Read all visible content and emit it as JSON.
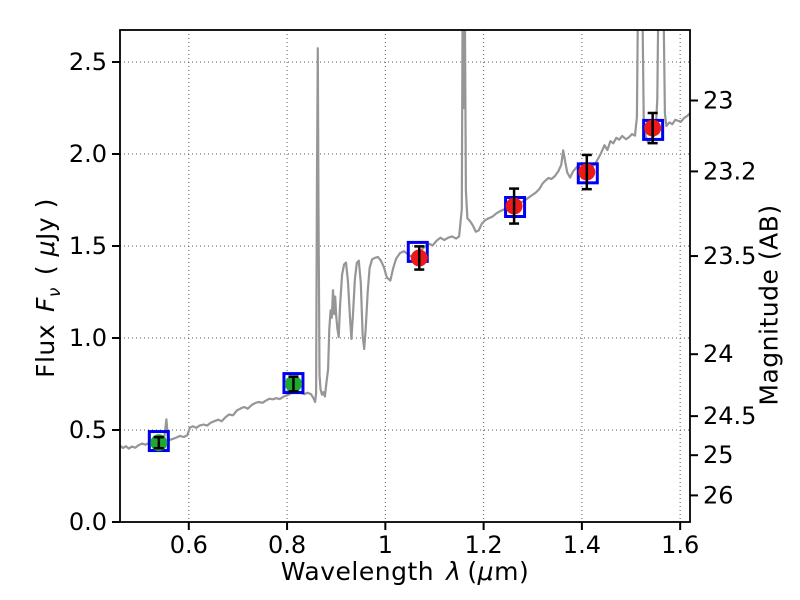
{
  "labels": {
    "x_word": "Wavelength",
    "x_lambda": "λ",
    "x_unit_pre": "(",
    "x_mu": "μ",
    "x_unit_post": "m)",
    "y_left_word": "Flux",
    "y_left_F": "F",
    "y_left_nu": "ν",
    "y_left_unit_pre": "( ",
    "y_left_mu": "μ",
    "y_left_unit_post": "Jy )",
    "y_right": "Magnitude (AB)"
  },
  "chart_data": {
    "type": "line+scatter",
    "title": "",
    "xlabel": "Wavelength λ (μm)",
    "ylabel_left": "Flux Fν ( μJy )",
    "ylabel_right": "Magnitude (AB)",
    "xlim": [
      0.46,
      1.62
    ],
    "ylim_flux": [
      0.0,
      2.674
    ],
    "x_ticks": [
      0.6,
      0.8,
      1.0,
      1.2,
      1.4,
      1.6
    ],
    "x_tick_labels": [
      "0.6",
      "0.8",
      "1",
      "1.2",
      "1.4",
      "1.6"
    ],
    "y_ticks_flux": [
      0.0,
      0.5,
      1.0,
      1.5,
      2.0,
      2.5
    ],
    "y_tick_labels_flux": [
      "0.0",
      "0.5",
      "1.0",
      "1.5",
      "2.0",
      "2.5"
    ],
    "y_ticks_mag": [
      23,
      23.2,
      23.5,
      24,
      24.5,
      25,
      26
    ],
    "y_tick_labels_mag": [
      "23",
      "23.2",
      "23.5",
      "24",
      "24.5",
      "25",
      "26"
    ],
    "ab_zero_point": 23.9,
    "grid": "dotted",
    "grid_color": "#777777",
    "series": [
      {
        "name": "model-spectrum",
        "marker": "line",
        "color": "#969696",
        "points": [
          [
            0.46,
            0.415
          ],
          [
            0.466,
            0.402
          ],
          [
            0.472,
            0.412
          ],
          [
            0.478,
            0.399
          ],
          [
            0.484,
            0.41
          ],
          [
            0.491,
            0.404
          ],
          [
            0.498,
            0.418
          ],
          [
            0.505,
            0.426
          ],
          [
            0.512,
            0.42
          ],
          [
            0.519,
            0.43
          ],
          [
            0.527,
            0.426
          ],
          [
            0.535,
            0.436
          ],
          [
            0.543,
            0.434
          ],
          [
            0.549,
            0.442
          ],
          [
            0.552,
            0.5
          ],
          [
            0.5545,
            0.558
          ],
          [
            0.557,
            0.47
          ],
          [
            0.561,
            0.446
          ],
          [
            0.568,
            0.452
          ],
          [
            0.575,
            0.459
          ],
          [
            0.582,
            0.468
          ],
          [
            0.59,
            0.462
          ],
          [
            0.597,
            0.472
          ],
          [
            0.602,
            0.512
          ],
          [
            0.608,
            0.52
          ],
          [
            0.615,
            0.512
          ],
          [
            0.622,
            0.524
          ],
          [
            0.63,
            0.53
          ],
          [
            0.637,
            0.524
          ],
          [
            0.645,
            0.54
          ],
          [
            0.652,
            0.548
          ],
          [
            0.66,
            0.556
          ],
          [
            0.667,
            0.548
          ],
          [
            0.675,
            0.57
          ],
          [
            0.682,
            0.584
          ],
          [
            0.69,
            0.58
          ],
          [
            0.698,
            0.606
          ],
          [
            0.706,
            0.618
          ],
          [
            0.713,
            0.625
          ],
          [
            0.72,
            0.616
          ],
          [
            0.728,
            0.636
          ],
          [
            0.735,
            0.646
          ],
          [
            0.742,
            0.652
          ],
          [
            0.75,
            0.648
          ],
          [
            0.757,
            0.66
          ],
          [
            0.764,
            0.67
          ],
          [
            0.771,
            0.667
          ],
          [
            0.778,
            0.673
          ],
          [
            0.785,
            0.668
          ],
          [
            0.792,
            0.68
          ],
          [
            0.8,
            0.688
          ],
          [
            0.807,
            0.699
          ],
          [
            0.814,
            0.708
          ],
          [
            0.821,
            0.712
          ],
          [
            0.828,
            0.702
          ],
          [
            0.835,
            0.695
          ],
          [
            0.842,
            0.703
          ],
          [
            0.849,
            0.694
          ],
          [
            0.854,
            0.672
          ],
          [
            0.857,
            0.652
          ],
          [
            0.859,
            0.7
          ],
          [
            0.861,
            1.9
          ],
          [
            0.8625,
            2.575
          ],
          [
            0.864,
            1.7
          ],
          [
            0.866,
            0.8
          ],
          [
            0.868,
            0.722
          ],
          [
            0.871,
            0.692
          ],
          [
            0.874,
            0.706
          ],
          [
            0.877,
            0.682
          ],
          [
            0.88,
            0.756
          ],
          [
            0.8835,
            0.83
          ],
          [
            0.886,
            1.05
          ],
          [
            0.8885,
            1.15
          ],
          [
            0.891,
            1.11
          ],
          [
            0.8935,
            1.26
          ],
          [
            0.896,
            1.13
          ],
          [
            0.898,
            1.225
          ],
          [
            0.9,
            1.12
          ],
          [
            0.9025,
            1.05
          ],
          [
            0.905,
            1.005
          ],
          [
            0.908,
            1.18
          ],
          [
            0.912,
            1.345
          ],
          [
            0.916,
            1.4
          ],
          [
            0.92,
            1.41
          ],
          [
            0.924,
            1.305
          ],
          [
            0.928,
            1.11
          ],
          [
            0.931,
            0.995
          ],
          [
            0.934,
            1.12
          ],
          [
            0.938,
            1.32
          ],
          [
            0.942,
            1.408
          ],
          [
            0.946,
            1.42
          ],
          [
            0.95,
            1.3
          ],
          [
            0.954,
            1.01
          ],
          [
            0.957,
            0.94
          ],
          [
            0.96,
            1.05
          ],
          [
            0.964,
            1.25
          ],
          [
            0.968,
            1.38
          ],
          [
            0.973,
            1.428
          ],
          [
            0.979,
            1.436
          ],
          [
            0.985,
            1.44
          ],
          [
            0.991,
            1.42
          ],
          [
            0.997,
            1.385
          ],
          [
            1.003,
            1.33
          ],
          [
            1.01,
            1.312
          ],
          [
            1.016,
            1.38
          ],
          [
            1.022,
            1.432
          ],
          [
            1.03,
            1.462
          ],
          [
            1.038,
            1.472
          ],
          [
            1.046,
            1.455
          ],
          [
            1.054,
            1.44
          ],
          [
            1.06,
            1.455
          ],
          [
            1.066,
            1.468
          ],
          [
            1.074,
            1.48
          ],
          [
            1.082,
            1.5
          ],
          [
            1.09,
            1.512
          ],
          [
            1.096,
            1.502
          ],
          [
            1.104,
            1.528
          ],
          [
            1.112,
            1.545
          ],
          [
            1.12,
            1.532
          ],
          [
            1.128,
            1.545
          ],
          [
            1.136,
            1.552
          ],
          [
            1.144,
            1.54
          ],
          [
            1.15,
            1.552
          ],
          [
            1.1555,
            1.7
          ],
          [
            1.1575,
            2.95
          ],
          [
            1.1595,
            2.25
          ],
          [
            1.1615,
            2.95
          ],
          [
            1.164,
            1.8
          ],
          [
            1.167,
            1.65
          ],
          [
            1.172,
            1.636
          ],
          [
            1.178,
            1.612
          ],
          [
            1.184,
            1.578
          ],
          [
            1.19,
            1.585
          ],
          [
            1.196,
            1.62
          ],
          [
            1.203,
            1.64
          ],
          [
            1.21,
            1.65
          ],
          [
            1.218,
            1.66
          ],
          [
            1.226,
            1.678
          ],
          [
            1.234,
            1.69
          ],
          [
            1.242,
            1.7
          ],
          [
            1.25,
            1.698
          ],
          [
            1.258,
            1.708
          ],
          [
            1.266,
            1.72
          ],
          [
            1.274,
            1.734
          ],
          [
            1.282,
            1.745
          ],
          [
            1.29,
            1.76
          ],
          [
            1.298,
            1.775
          ],
          [
            1.306,
            1.79
          ],
          [
            1.314,
            1.812
          ],
          [
            1.32,
            1.84
          ],
          [
            1.326,
            1.856
          ],
          [
            1.332,
            1.87
          ],
          [
            1.338,
            1.864
          ],
          [
            1.345,
            1.88
          ],
          [
            1.352,
            1.906
          ],
          [
            1.358,
            1.942
          ],
          [
            1.362,
            2.02
          ],
          [
            1.366,
            1.958
          ],
          [
            1.37,
            1.9
          ],
          [
            1.376,
            1.872
          ],
          [
            1.382,
            1.906
          ],
          [
            1.39,
            1.93
          ],
          [
            1.398,
            1.945
          ],
          [
            1.406,
            1.95
          ],
          [
            1.414,
            1.94
          ],
          [
            1.422,
            1.932
          ],
          [
            1.43,
            1.96
          ],
          [
            1.438,
            2.0
          ],
          [
            1.446,
            2.048
          ],
          [
            1.452,
            2.022
          ],
          [
            1.458,
            2.07
          ],
          [
            1.464,
            2.058
          ],
          [
            1.47,
            2.088
          ],
          [
            1.476,
            2.078
          ],
          [
            1.482,
            2.098
          ],
          [
            1.49,
            2.08
          ],
          [
            1.496,
            2.092
          ],
          [
            1.502,
            2.108
          ],
          [
            1.508,
            2.1
          ],
          [
            1.512,
            2.2
          ],
          [
            1.5145,
            2.95
          ],
          [
            1.519,
            2.96
          ],
          [
            1.5225,
            2.95
          ],
          [
            1.526,
            2.16
          ],
          [
            1.53,
            2.092
          ],
          [
            1.535,
            2.062
          ],
          [
            1.54,
            2.082
          ],
          [
            1.545,
            2.092
          ],
          [
            1.55,
            2.112
          ],
          [
            1.5535,
            2.3
          ],
          [
            1.556,
            2.95
          ],
          [
            1.561,
            2.96
          ],
          [
            1.5655,
            2.95
          ],
          [
            1.569,
            2.22
          ],
          [
            1.572,
            2.152
          ],
          [
            1.578,
            2.172
          ],
          [
            1.584,
            2.162
          ],
          [
            1.59,
            2.186
          ],
          [
            1.596,
            2.18
          ],
          [
            1.602,
            2.176
          ],
          [
            1.608,
            2.196
          ],
          [
            1.614,
            2.206
          ],
          [
            1.62,
            2.222
          ]
        ]
      },
      {
        "name": "model-photometry",
        "marker": "open-square",
        "color": "#0000f0",
        "points": [
          [
            0.539,
            0.44
          ],
          [
            0.813,
            0.755
          ],
          [
            1.066,
            1.468
          ],
          [
            1.264,
            1.712
          ],
          [
            1.412,
            1.895
          ],
          [
            1.545,
            2.131
          ]
        ]
      },
      {
        "name": "observed-photometry-optical",
        "marker": "circle",
        "color": "#1ea832",
        "errorbar_color": "#000000",
        "points": [
          [
            0.539,
            0.431,
            0.03
          ],
          [
            0.813,
            0.75,
            0.04
          ]
        ]
      },
      {
        "name": "observed-photometry-infrared",
        "marker": "circle",
        "color": "#eb1919",
        "errorbar_color": "#000000",
        "points": [
          [
            1.069,
            1.435,
            0.063
          ],
          [
            1.262,
            1.717,
            0.095
          ],
          [
            1.41,
            1.902,
            0.093
          ],
          [
            1.544,
            2.141,
            0.082
          ]
        ]
      }
    ]
  }
}
